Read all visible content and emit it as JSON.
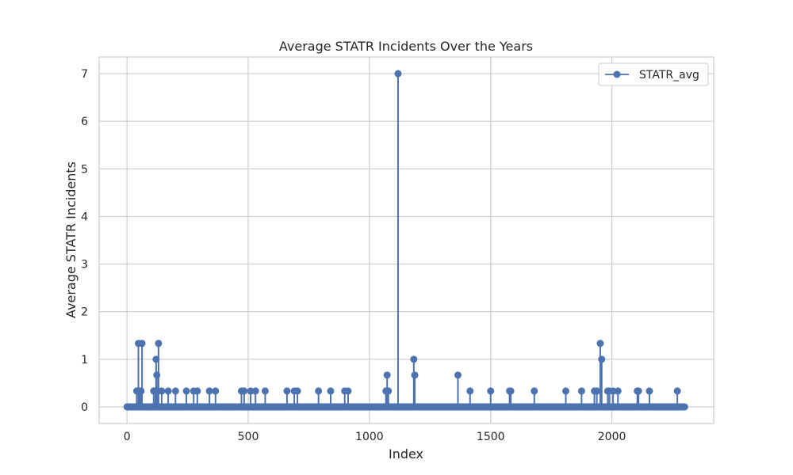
{
  "chart_data": {
    "type": "line",
    "title": "Average STATR Incidents Over the Years",
    "xlabel": "Index",
    "ylabel": "Average STATR Incidents",
    "xlim": [
      -115,
      2420
    ],
    "ylim": [
      -0.35,
      7.35
    ],
    "xticks": [
      0,
      500,
      1000,
      1500,
      2000
    ],
    "yticks": [
      0,
      1,
      2,
      3,
      4,
      5,
      6,
      7
    ],
    "x_range": [
      0,
      2300
    ],
    "baseline_value": 0,
    "grid": true,
    "legend_position": "top-right",
    "series": [
      {
        "name": "STATR_avg",
        "color": "#4c72b0",
        "marker": "circle",
        "nonzero_points": [
          [
            40,
            0.333
          ],
          [
            47,
            1.333
          ],
          [
            52,
            0.333
          ],
          [
            58,
            0.333
          ],
          [
            62,
            1.333
          ],
          [
            110,
            0.333
          ],
          [
            117,
            0.333
          ],
          [
            120,
            1.0
          ],
          [
            123,
            0.667
          ],
          [
            127,
            0.333
          ],
          [
            130,
            1.333
          ],
          [
            143,
            0.333
          ],
          [
            170,
            0.333
          ],
          [
            200,
            0.333
          ],
          [
            245,
            0.333
          ],
          [
            275,
            0.333
          ],
          [
            290,
            0.333
          ],
          [
            340,
            0.333
          ],
          [
            365,
            0.333
          ],
          [
            472,
            0.333
          ],
          [
            483,
            0.333
          ],
          [
            510,
            0.333
          ],
          [
            530,
            0.333
          ],
          [
            570,
            0.333
          ],
          [
            660,
            0.333
          ],
          [
            690,
            0.333
          ],
          [
            703,
            0.333
          ],
          [
            790,
            0.333
          ],
          [
            840,
            0.333
          ],
          [
            898,
            0.333
          ],
          [
            912,
            0.333
          ],
          [
            1068,
            0.333
          ],
          [
            1073,
            0.667
          ],
          [
            1078,
            0.333
          ],
          [
            1118,
            7.0
          ],
          [
            1183,
            1.0
          ],
          [
            1187,
            0.667
          ],
          [
            1365,
            0.667
          ],
          [
            1415,
            0.333
          ],
          [
            1500,
            0.333
          ],
          [
            1578,
            0.333
          ],
          [
            1583,
            0.333
          ],
          [
            1680,
            0.333
          ],
          [
            1810,
            0.333
          ],
          [
            1875,
            0.333
          ],
          [
            1928,
            0.333
          ],
          [
            1938,
            0.333
          ],
          [
            1952,
            1.333
          ],
          [
            1958,
            1.0
          ],
          [
            1983,
            0.333
          ],
          [
            1990,
            0.333
          ],
          [
            2005,
            0.333
          ],
          [
            2025,
            0.333
          ],
          [
            2105,
            0.333
          ],
          [
            2110,
            0.333
          ],
          [
            2155,
            0.333
          ],
          [
            2270,
            0.333
          ]
        ]
      }
    ]
  }
}
